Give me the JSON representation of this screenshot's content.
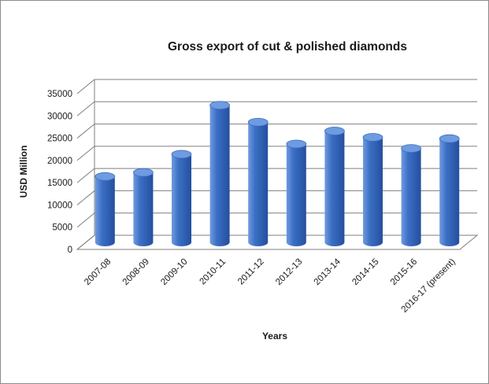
{
  "chart_data": {
    "type": "bar",
    "title": "Gross export of cut & polished diamonds",
    "xlabel": "Years",
    "ylabel": "USD Million",
    "categories": [
      "2007-08",
      "2008-09",
      "2009-10",
      "2010-11",
      "2011-12",
      "2012-13",
      "2013-14",
      "2014-15",
      "2015-16",
      "2016-17 (present)"
    ],
    "values": [
      14800,
      15700,
      19800,
      30800,
      27000,
      22100,
      25000,
      23600,
      21100,
      23300
    ],
    "ylim": [
      0,
      35000
    ],
    "yticks": [
      "0",
      "5000",
      "10000",
      "15000",
      "20000",
      "25000",
      "30000",
      "35000"
    ],
    "grid": true,
    "legend": "none",
    "style": "3d-cylinder",
    "colors": {
      "bar_light": "#6f9be0",
      "bar_mid": "#3b6fc4",
      "bar_dark": "#244f9e",
      "grid": "#7f7f7f"
    }
  }
}
